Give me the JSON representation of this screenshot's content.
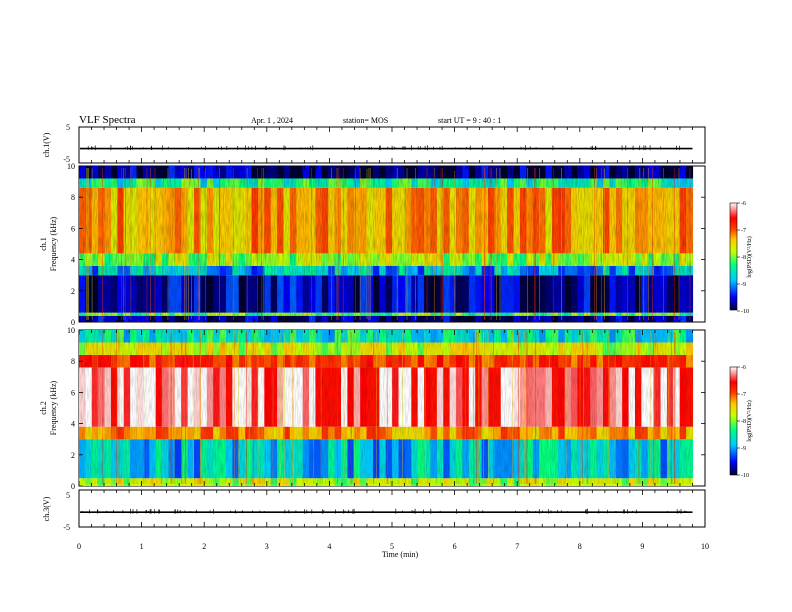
{
  "header": {
    "title": "VLF Spectra",
    "date": "Apr. 1 , 2024",
    "station": "station= MOS",
    "start": "start UT =  9 : 40 : 1"
  },
  "colors": {
    "spectrum_scale": [
      "#000032",
      "#0000ff",
      "#00c8ff",
      "#00ff80",
      "#c8ff00",
      "#ffc800",
      "#ff3c00",
      "#ff0000",
      "#ffffff"
    ]
  },
  "chart_data": [
    {
      "type": "line",
      "name": "ch1-waveform",
      "ylabel": "ch.1(V)",
      "ylim": [
        -5,
        5
      ],
      "yticks": [
        "5",
        "-5"
      ],
      "baseline_v": 0,
      "x_range_min": [
        0,
        9.8
      ]
    },
    {
      "type": "heatmap",
      "name": "ch1-spectrogram",
      "ylabel_channel": "ch.1",
      "ylabel": "Frequency (kHz)",
      "ylim_khz": [
        0,
        10
      ],
      "yticks": [
        "0",
        "2",
        "4",
        "6",
        "8",
        "10"
      ],
      "colorbar_label": "log(PSD)(V²/Hz)",
      "colorbar_range": [
        -10,
        -6
      ],
      "colorbar_ticks": [
        "-6",
        "-7",
        "-8",
        "-9",
        "-10"
      ],
      "bands": [
        {
          "f_lo": 0.0,
          "f_hi": 0.4,
          "log_psd": -9.8
        },
        {
          "f_lo": 0.4,
          "f_hi": 0.6,
          "log_psd": -8.3
        },
        {
          "f_lo": 0.6,
          "f_hi": 3.0,
          "log_psd": -9.7
        },
        {
          "f_lo": 3.0,
          "f_hi": 3.6,
          "log_psd": -9.0
        },
        {
          "f_lo": 3.6,
          "f_hi": 4.4,
          "log_psd": -8.1
        },
        {
          "f_lo": 4.4,
          "f_hi": 8.6,
          "log_psd": -7.4
        },
        {
          "f_lo": 8.6,
          "f_hi": 9.2,
          "log_psd": -8.6
        },
        {
          "f_lo": 9.2,
          "f_hi": 10.0,
          "log_psd": -9.8
        }
      ]
    },
    {
      "type": "heatmap",
      "name": "ch2-spectrogram",
      "ylabel_channel": "ch.2",
      "ylabel": "Frequency (kHz)",
      "ylim_khz": [
        0,
        10
      ],
      "yticks": [
        "0",
        "2",
        "4",
        "6",
        "8",
        "10"
      ],
      "colorbar_label": "log(PSD)(V²/Hz)",
      "colorbar_range": [
        -10,
        -6
      ],
      "colorbar_ticks": [
        "-6",
        "-7",
        "-8",
        "-9",
        "-10"
      ],
      "bands": [
        {
          "f_lo": 0.0,
          "f_hi": 0.5,
          "log_psd": -8.0
        },
        {
          "f_lo": 0.5,
          "f_hi": 3.0,
          "log_psd": -8.9
        },
        {
          "f_lo": 3.0,
          "f_hi": 3.8,
          "log_psd": -7.3
        },
        {
          "f_lo": 3.8,
          "f_hi": 7.6,
          "log_psd": -6.2
        },
        {
          "f_lo": 7.6,
          "f_hi": 8.4,
          "log_psd": -6.9
        },
        {
          "f_lo": 8.4,
          "f_hi": 9.2,
          "log_psd": -7.9
        },
        {
          "f_lo": 9.2,
          "f_hi": 10.0,
          "log_psd": -8.7
        }
      ]
    },
    {
      "type": "line",
      "name": "ch3-waveform",
      "ylabel": "ch.3(V)",
      "ylim": [
        -5,
        5
      ],
      "yticks": [
        "5",
        "-5"
      ],
      "baseline_v": 0,
      "x_range_min": [
        0,
        9.8
      ]
    }
  ],
  "xaxis": {
    "label": "Time (min)",
    "xlim": [
      0,
      10
    ],
    "ticks": [
      "0",
      "1",
      "2",
      "3",
      "4",
      "5",
      "6",
      "7",
      "8",
      "9",
      "10"
    ]
  }
}
